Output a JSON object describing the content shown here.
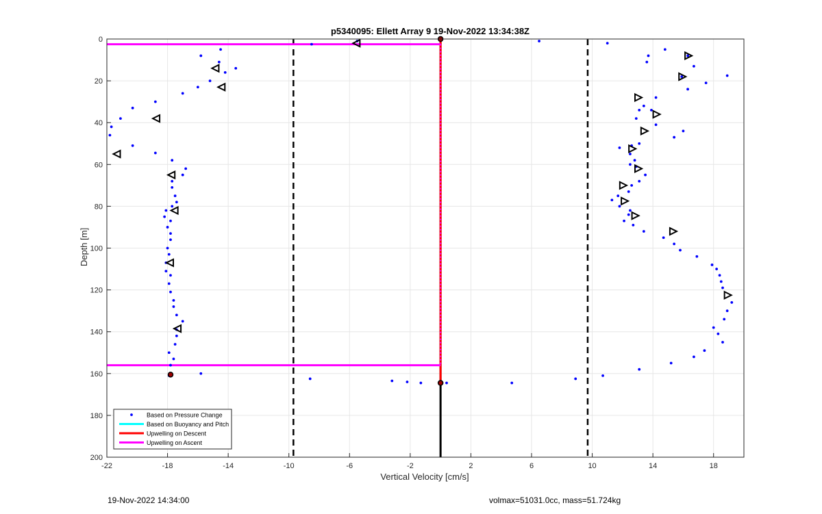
{
  "chart_data": {
    "type": "scatter",
    "title": "p5340095: Ellett Array 9 19-Nov-2022 13:34:38Z",
    "xlabel": "Vertical Velocity [cm/s]",
    "ylabel": "Depth [m]",
    "xlim": [
      -22,
      20
    ],
    "ylim": [
      200,
      0
    ],
    "y_reversed": true,
    "grid": true,
    "xticks": [
      "-22",
      "-18",
      "-14",
      "-10",
      "-6",
      "-2",
      "2",
      "6",
      "10",
      "14",
      "18"
    ],
    "yticks": [
      "0",
      "20",
      "40",
      "60",
      "80",
      "100",
      "120",
      "140",
      "160",
      "180",
      "200"
    ],
    "legend_position": "bottom-left",
    "legend": [
      {
        "label": "Based on Pressure Change",
        "color": "#0000ff",
        "style": "dot"
      },
      {
        "label": "Based on Buoyancy and Pitch",
        "color": "#00ffff",
        "style": "line"
      },
      {
        "label": "Upwelling on Descent",
        "color": "#ff0000",
        "style": "line"
      },
      {
        "label": "Upwelling on Ascent",
        "color": "#ff00ff",
        "style": "line"
      }
    ],
    "dashed_vlines": [
      -9.7,
      9.7
    ],
    "black_vline": {
      "x": 0,
      "from": 0,
      "to": 200
    },
    "red_vline": {
      "x": 0,
      "from": 0,
      "to": 164
    },
    "magenta_vline": {
      "x": 0,
      "from": 2.5,
      "to": 156
    },
    "magenta_hlines": [
      {
        "y": 2.5,
        "x_from": -22,
        "x_to": 0
      },
      {
        "y": 156,
        "x_from": -22,
        "x_to": 0
      }
    ],
    "pressure_points": [
      [
        6.5,
        1
      ],
      [
        11,
        2
      ],
      [
        14.8,
        5
      ],
      [
        16.3,
        8
      ],
      [
        13.7,
        8
      ],
      [
        13.6,
        11
      ],
      [
        16.7,
        13
      ],
      [
        15.9,
        18
      ],
      [
        18.9,
        17.5
      ],
      [
        17.5,
        21
      ],
      [
        16.3,
        24
      ],
      [
        14.2,
        28
      ],
      [
        13.4,
        32
      ],
      [
        13.1,
        34
      ],
      [
        13.9,
        34
      ],
      [
        12.9,
        38
      ],
      [
        14.2,
        41
      ],
      [
        16,
        44
      ],
      [
        15.4,
        47
      ],
      [
        13.1,
        50
      ],
      [
        12.6,
        51
      ],
      [
        11.8,
        52
      ],
      [
        12.5,
        55
      ],
      [
        12.8,
        58
      ],
      [
        12.5,
        60
      ],
      [
        12.9,
        61
      ],
      [
        13.5,
        65
      ],
      [
        12.6,
        70
      ],
      [
        13.1,
        68
      ],
      [
        12.4,
        73
      ],
      [
        11.7,
        75
      ],
      [
        11.3,
        77
      ],
      [
        11.8,
        80
      ],
      [
        12.5,
        82
      ],
      [
        12.4,
        84
      ],
      [
        12.1,
        87
      ],
      [
        12.7,
        89
      ],
      [
        13.4,
        92
      ],
      [
        14.7,
        95
      ],
      [
        15.4,
        98
      ],
      [
        15.8,
        101
      ],
      [
        16.9,
        104
      ],
      [
        17.9,
        108
      ],
      [
        18.2,
        110
      ],
      [
        18.4,
        113
      ],
      [
        18.5,
        116
      ],
      [
        18.6,
        119
      ],
      [
        19.2,
        126
      ],
      [
        18.9,
        130
      ],
      [
        18.7,
        134
      ],
      [
        18,
        138
      ],
      [
        18.3,
        141
      ],
      [
        18.6,
        145
      ],
      [
        17.4,
        149
      ],
      [
        16.7,
        152
      ],
      [
        15.2,
        155
      ],
      [
        13.1,
        158
      ],
      [
        10.7,
        161
      ],
      [
        8.9,
        162.5
      ],
      [
        4.7,
        164.5
      ],
      [
        0.4,
        164.5
      ],
      [
        -8.5,
        2.5
      ],
      [
        -5.5,
        1
      ],
      [
        -14.5,
        5
      ],
      [
        -15.8,
        8
      ],
      [
        -14.6,
        11
      ],
      [
        -13.5,
        14
      ],
      [
        -14.2,
        16
      ],
      [
        -15.2,
        20
      ],
      [
        -16,
        23
      ],
      [
        -17,
        26
      ],
      [
        -18.8,
        30
      ],
      [
        -20.3,
        33
      ],
      [
        -21.1,
        38
      ],
      [
        -21.7,
        42
      ],
      [
        -21.8,
        46
      ],
      [
        -20.3,
        51
      ],
      [
        -18.8,
        54.5
      ],
      [
        -17.7,
        58
      ],
      [
        -16.8,
        62
      ],
      [
        -17,
        65
      ],
      [
        -17.7,
        68
      ],
      [
        -17.7,
        71
      ],
      [
        -17.5,
        75
      ],
      [
        -17.4,
        78
      ],
      [
        -17.7,
        80
      ],
      [
        -18.1,
        82
      ],
      [
        -18.2,
        85
      ],
      [
        -17.8,
        87
      ],
      [
        -18,
        90
      ],
      [
        -17.8,
        93
      ],
      [
        -17.8,
        96
      ],
      [
        -18,
        100
      ],
      [
        -17.9,
        103
      ],
      [
        -18.1,
        107
      ],
      [
        -18.1,
        111
      ],
      [
        -17.8,
        113
      ],
      [
        -17.9,
        117
      ],
      [
        -17.8,
        121
      ],
      [
        -17.6,
        125
      ],
      [
        -17.6,
        128
      ],
      [
        -17.4,
        132
      ],
      [
        -17,
        135
      ],
      [
        -17.4,
        139
      ],
      [
        -17.4,
        142
      ],
      [
        -17.5,
        146
      ],
      [
        -17.9,
        150
      ],
      [
        -17.6,
        153
      ],
      [
        -17.8,
        156
      ],
      [
        -15.8,
        160
      ],
      [
        -17.9,
        161
      ],
      [
        -8.6,
        162.5
      ],
      [
        -3.2,
        163.5
      ],
      [
        -2.2,
        164
      ],
      [
        -1.3,
        164.5
      ]
    ],
    "ascent_markers": [
      [
        16.3,
        8
      ],
      [
        15.9,
        18
      ],
      [
        13,
        28
      ],
      [
        14.2,
        36
      ],
      [
        13.4,
        44
      ],
      [
        12.6,
        52.5
      ],
      [
        13,
        62
      ],
      [
        12,
        70
      ],
      [
        12.1,
        77.5
      ],
      [
        12.8,
        84.5
      ],
      [
        15.3,
        92
      ],
      [
        18.9,
        122.5
      ]
    ],
    "descent_markers": [
      [
        -14.8,
        14
      ],
      [
        -14.4,
        23
      ],
      [
        -18.7,
        38
      ],
      [
        -21.3,
        55
      ],
      [
        -17.7,
        65
      ],
      [
        -17.5,
        82
      ],
      [
        -17.8,
        107
      ],
      [
        -17.3,
        138.5
      ],
      [
        -5.5,
        2
      ]
    ],
    "endpoints": [
      [
        0,
        0
      ],
      [
        0,
        164.5
      ],
      [
        -17.8,
        160.5
      ]
    ]
  },
  "footer": {
    "timestamp": "19-Nov-2022 14:34:00",
    "info": "volmax=51031.0cc, mass=51.724kg"
  }
}
